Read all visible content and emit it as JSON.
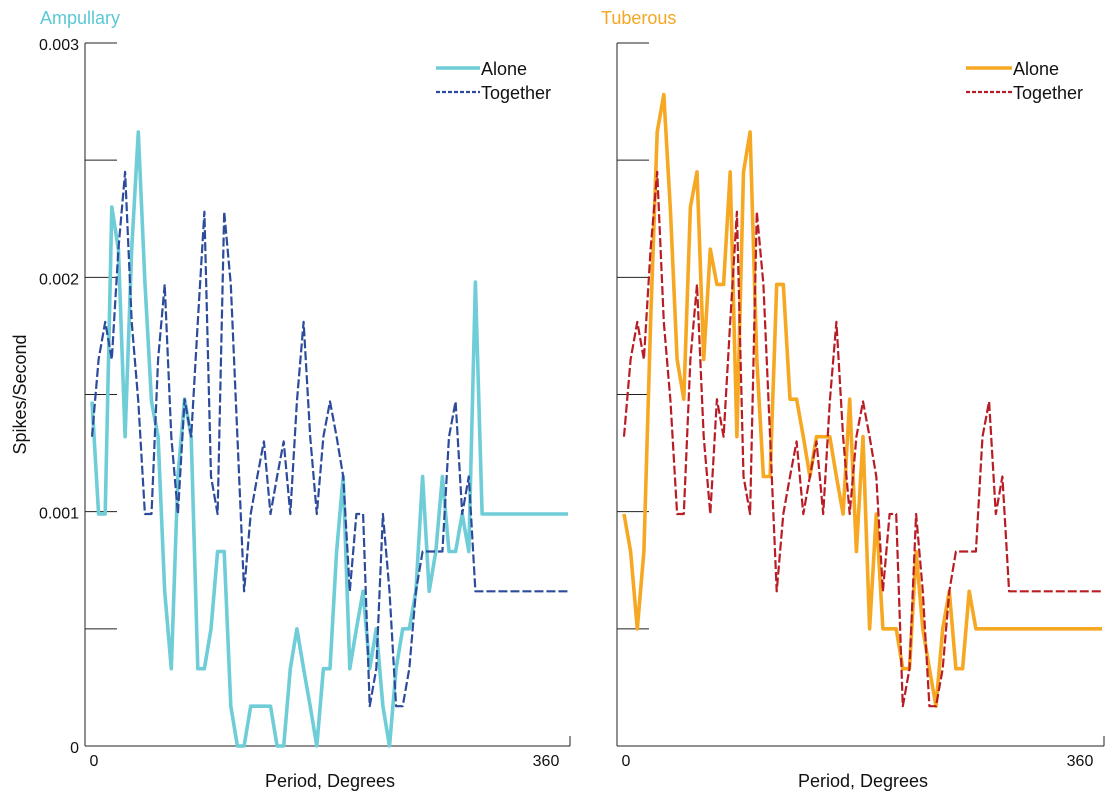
{
  "colors": {
    "ampullary_alone": "#6fcdd8",
    "ampullary_together": "#2c4b9b",
    "tuberous_alone": "#f6a823",
    "tuberous_together": "#b81c24",
    "ampullary_title": "#5bc8d6",
    "tuberous_title": "#f5a623",
    "axis": "#222222"
  },
  "chart_data": [
    {
      "type": "line",
      "title": "Ampullary",
      "xlabel": "Period, Degrees",
      "ylabel": "Spikes/Second",
      "xlim": [
        0,
        360
      ],
      "ylim": [
        0,
        0.003
      ],
      "x_tick_labels": [
        "0",
        "360"
      ],
      "y_tick_labels": [
        "0",
        "0.001",
        "0.002",
        "0.003"
      ],
      "legend_position": "top-right",
      "x": [
        0,
        5,
        10,
        15,
        20,
        25,
        30,
        35,
        40,
        45,
        50,
        55,
        60,
        65,
        70,
        75,
        80,
        85,
        90,
        95,
        100,
        105,
        110,
        115,
        120,
        125,
        130,
        135,
        140,
        145,
        150,
        155,
        160,
        165,
        170,
        175,
        180,
        185,
        190,
        195,
        200,
        205,
        210,
        215,
        220,
        225,
        230,
        235,
        240,
        245,
        250,
        255,
        260,
        265,
        270,
        275,
        280,
        285,
        290,
        295,
        300,
        305,
        310,
        315,
        320,
        325,
        330,
        335,
        340,
        345,
        350,
        355,
        360
      ],
      "series": [
        {
          "name": "Alone",
          "style": "solid",
          "values": [
            0.00147,
            0.00099,
            0.00099,
            0.0023,
            0.00212,
            0.00132,
            0.00212,
            0.00262,
            0.00198,
            0.00147,
            0.00132,
            0.00066,
            0.00033,
            0.00115,
            0.00148,
            0.00132,
            0.00033,
            0.00033,
            0.0005,
            0.00083,
            0.00083,
            0.00017,
            0.0,
            0.0,
            0.00017,
            0.00017,
            0.00017,
            0.00017,
            0.0,
            0.0,
            0.00033,
            0.0005,
            0.00033,
            0.00017,
            0.0,
            0.00033,
            0.00033,
            0.00083,
            0.00115,
            0.00033,
            0.0005,
            0.00066,
            0.00033,
            0.0005,
            0.00017,
            0.0,
            0.00033,
            0.0005,
            0.0005,
            0.00066,
            0.00115,
            0.00066,
            0.00083,
            0.00115,
            0.00083,
            0.00083,
            0.00099,
            0.00083,
            0.00198,
            0.00099,
            0.00099,
            0.00099,
            0.00099,
            0.00099,
            0.00099,
            0.00099,
            0.00099,
            0.00099,
            0.00099,
            0.00099,
            0.00099,
            0.00099,
            0.00099
          ]
        },
        {
          "name": "Together",
          "style": "dashed",
          "values": [
            0.00132,
            0.00165,
            0.00181,
            0.00165,
            0.00212,
            0.00245,
            0.00181,
            0.00147,
            0.00099,
            0.00099,
            0.00165,
            0.00197,
            0.00132,
            0.00099,
            0.00148,
            0.00132,
            0.00181,
            0.00228,
            0.00115,
            0.00099,
            0.00228,
            0.00197,
            0.00132,
            0.00066,
            0.00099,
            0.00115,
            0.0013,
            0.00099,
            0.00115,
            0.0013,
            0.00099,
            0.00147,
            0.00181,
            0.00132,
            0.00099,
            0.00132,
            0.00147,
            0.00132,
            0.00115,
            0.00066,
            0.00099,
            0.00099,
            0.00017,
            0.00033,
            0.00099,
            0.00066,
            0.00017,
            0.00017,
            0.00033,
            0.00066,
            0.00083,
            0.00083,
            0.00083,
            0.00083,
            0.00132,
            0.00147,
            0.00099,
            0.00115,
            0.00066,
            0.00066,
            0.00066,
            0.00066,
            0.00066,
            0.00066,
            0.00066,
            0.00066,
            0.00066,
            0.00066,
            0.00066,
            0.00066,
            0.00066,
            0.00066,
            0.00066
          ]
        }
      ]
    },
    {
      "type": "line",
      "title": "Tuberous",
      "xlabel": "Period, Degrees",
      "ylabel": "",
      "xlim": [
        0,
        360
      ],
      "ylim": [
        0,
        0.003
      ],
      "x_tick_labels": [
        "0",
        "360"
      ],
      "y_tick_labels": [],
      "legend_position": "top-right",
      "x": [
        0,
        5,
        10,
        15,
        20,
        25,
        30,
        35,
        40,
        45,
        50,
        55,
        60,
        65,
        70,
        75,
        80,
        85,
        90,
        95,
        100,
        105,
        110,
        115,
        120,
        125,
        130,
        135,
        140,
        145,
        150,
        155,
        160,
        165,
        170,
        175,
        180,
        185,
        190,
        195,
        200,
        205,
        210,
        215,
        220,
        225,
        230,
        235,
        240,
        245,
        250,
        255,
        260,
        265,
        270,
        275,
        280,
        285,
        290,
        295,
        300,
        305,
        310,
        315,
        320,
        325,
        330,
        335,
        340,
        345,
        350,
        355,
        360
      ],
      "series": [
        {
          "name": "Alone",
          "style": "solid",
          "values": [
            0.00099,
            0.00083,
            0.0005,
            0.00083,
            0.00181,
            0.00262,
            0.00278,
            0.00228,
            0.00165,
            0.00148,
            0.0023,
            0.00245,
            0.00165,
            0.00212,
            0.00197,
            0.00197,
            0.00245,
            0.00132,
            0.00245,
            0.00262,
            0.00165,
            0.00115,
            0.00115,
            0.00197,
            0.00197,
            0.00148,
            0.00148,
            0.00132,
            0.00115,
            0.00132,
            0.00132,
            0.00132,
            0.00115,
            0.00099,
            0.00148,
            0.00083,
            0.00132,
            0.0005,
            0.00099,
            0.0005,
            0.0005,
            0.0005,
            0.00033,
            0.00033,
            0.00083,
            0.0005,
            0.00033,
            0.00017,
            0.0005,
            0.00066,
            0.00033,
            0.00033,
            0.00066,
            0.0005,
            0.0005,
            0.0005,
            0.0005,
            0.0005,
            0.0005,
            0.0005,
            0.0005,
            0.0005,
            0.0005,
            0.0005,
            0.0005,
            0.0005,
            0.0005,
            0.0005,
            0.0005,
            0.0005,
            0.0005,
            0.0005,
            0.0005
          ]
        },
        {
          "name": "Together",
          "style": "dashed",
          "values": [
            0.00132,
            0.00165,
            0.00181,
            0.00165,
            0.00212,
            0.00245,
            0.00181,
            0.00147,
            0.00099,
            0.00099,
            0.00165,
            0.00197,
            0.00132,
            0.00099,
            0.00148,
            0.00132,
            0.00181,
            0.00228,
            0.00115,
            0.00099,
            0.00228,
            0.00197,
            0.00132,
            0.00066,
            0.00099,
            0.00115,
            0.0013,
            0.00099,
            0.00115,
            0.0013,
            0.00099,
            0.00147,
            0.00181,
            0.00132,
            0.00099,
            0.00132,
            0.00147,
            0.00132,
            0.00115,
            0.00066,
            0.00099,
            0.00099,
            0.00017,
            0.00033,
            0.00099,
            0.00066,
            0.00017,
            0.00017,
            0.00033,
            0.00066,
            0.00083,
            0.00083,
            0.00083,
            0.00083,
            0.00132,
            0.00147,
            0.00099,
            0.00115,
            0.00066,
            0.00066,
            0.00066,
            0.00066,
            0.00066,
            0.00066,
            0.00066,
            0.00066,
            0.00066,
            0.00066,
            0.00066,
            0.00066,
            0.00066,
            0.00066,
            0.00066
          ]
        }
      ]
    }
  ]
}
